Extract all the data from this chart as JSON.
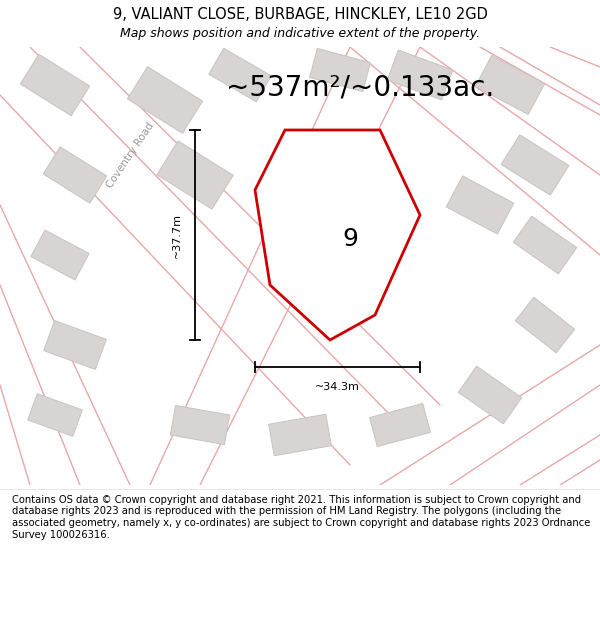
{
  "title": "9, VALIANT CLOSE, BURBAGE, HINCKLEY, LE10 2GD",
  "subtitle": "Map shows position and indicative extent of the property.",
  "area_text": "~537m²/~0.133ac.",
  "number_label": "9",
  "dim_height": "~37.7m",
  "dim_width": "~34.3m",
  "road_label": "Coventry Road",
  "footer": "Contains OS data © Crown copyright and database right 2021. This information is subject to Crown copyright and database rights 2023 and is reproduced with the permission of HM Land Registry. The polygons (including the associated geometry, namely x, y co-ordinates) are subject to Crown copyright and database rights 2023 Ordnance Survey 100026316.",
  "bg_color": "#ffffff",
  "map_bg": "#f0eaea",
  "plot_fill": "#ffffff",
  "plot_stroke": "#cc0000",
  "road_stroke": "#e8a8a8",
  "building_fill": "#d8d4d4",
  "building_stroke": "#c8c4c4",
  "dim_color": "#000000",
  "title_fontsize": 10.5,
  "subtitle_fontsize": 9,
  "area_fontsize": 20,
  "label_fontsize": 18,
  "footer_fontsize": 7.2
}
